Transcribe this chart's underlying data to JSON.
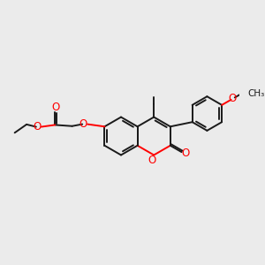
{
  "bg_color": "#ebebeb",
  "bond_color": "#1a1a1a",
  "oxygen_color": "#ff0000",
  "line_width": 1.4,
  "figsize": [
    3.0,
    3.0
  ],
  "dpi": 100,
  "xlim": [
    0,
    10
  ],
  "ylim": [
    0,
    10
  ]
}
